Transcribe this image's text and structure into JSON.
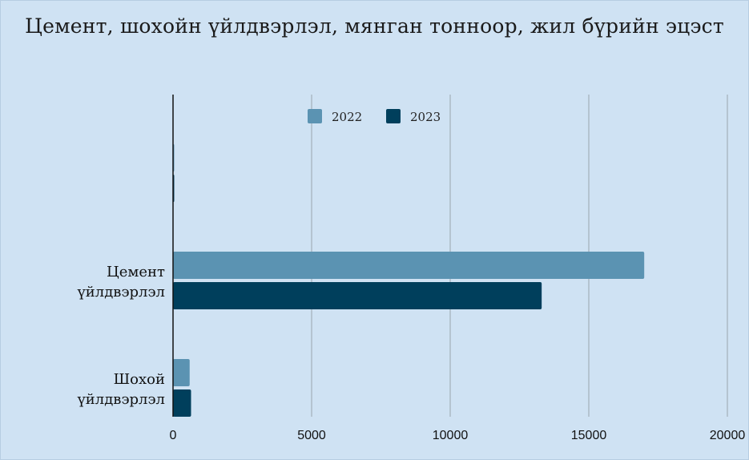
{
  "chart_data": {
    "type": "bar",
    "orientation": "horizontal",
    "title": "Цемент, шохойн  үйлдвэрлэл, мянган тонноор, жил бүрийн эцэст",
    "categories": [
      {
        "line1": "",
        "line2": ""
      },
      {
        "line1": "Цемент",
        "line2": "үйлдвэрлэл"
      },
      {
        "line1": "Шохой",
        "line2": "үйлдвэрлэл"
      }
    ],
    "series": [
      {
        "name": "2022",
        "color": "#5b93b2",
        "values": [
          0,
          17000,
          600
        ]
      },
      {
        "name": "2023",
        "color": "#003f5c",
        "values": [
          0,
          13300,
          650
        ]
      }
    ],
    "xlim": [
      0,
      20000
    ],
    "xticks": [
      "0",
      "5000",
      "10000",
      "15000",
      "20000"
    ],
    "xtick_values": [
      0,
      5000,
      10000,
      15000,
      20000
    ],
    "grid": "vertical",
    "legend": "top-center",
    "xlabel": "",
    "ylabel": ""
  }
}
